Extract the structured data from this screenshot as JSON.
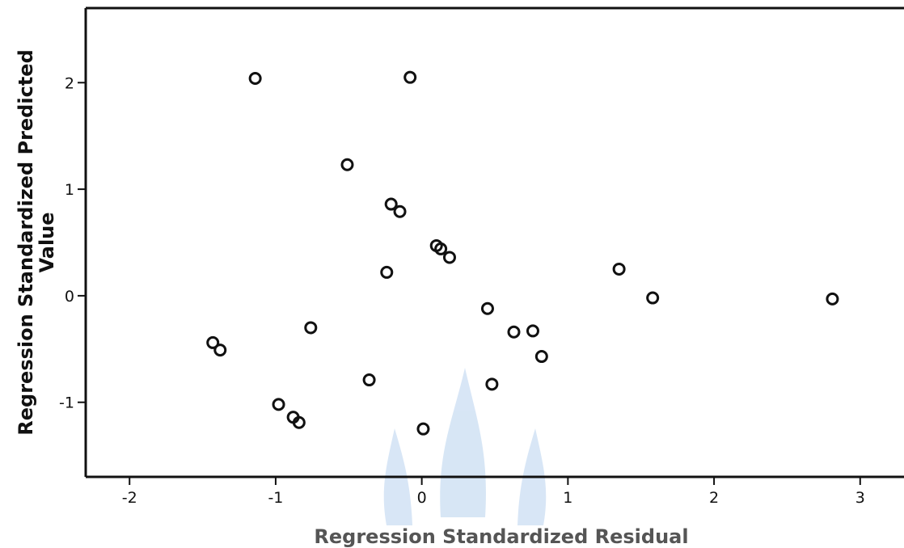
{
  "chart_data": {
    "type": "scatter",
    "title": "",
    "xlabel": "Regression Standardized Residual",
    "ylabel_line1": "Regression Standardized Predicted",
    "ylabel_line2": "Value",
    "xlim": [
      -2.3,
      3.3
    ],
    "ylim": [
      -1.7,
      2.7
    ],
    "x_ticks": [
      -2,
      -1,
      0,
      1,
      2,
      3
    ],
    "x_tick_labels": [
      "-2",
      "-1",
      "0",
      "1",
      "2",
      "3"
    ],
    "y_ticks": [
      -1,
      0,
      1,
      2
    ],
    "y_tick_labels": [
      "-1",
      "0",
      "1",
      "2"
    ],
    "grid": false,
    "legend": "none",
    "series": [
      {
        "points": [
          {
            "x": -1.14,
            "y": 2.04
          },
          {
            "x": -0.08,
            "y": 2.05
          },
          {
            "x": -0.51,
            "y": 1.23
          },
          {
            "x": -0.21,
            "y": 0.86
          },
          {
            "x": -0.15,
            "y": 0.79
          },
          {
            "x": 0.1,
            "y": 0.47
          },
          {
            "x": 0.13,
            "y": 0.44
          },
          {
            "x": 0.19,
            "y": 0.36
          },
          {
            "x": -0.24,
            "y": 0.22
          },
          {
            "x": 1.35,
            "y": 0.25
          },
          {
            "x": 1.58,
            "y": -0.02
          },
          {
            "x": 2.81,
            "y": -0.03
          },
          {
            "x": 0.45,
            "y": -0.12
          },
          {
            "x": -0.76,
            "y": -0.3
          },
          {
            "x": 0.63,
            "y": -0.34
          },
          {
            "x": 0.76,
            "y": -0.33
          },
          {
            "x": 0.82,
            "y": -0.57
          },
          {
            "x": -1.43,
            "y": -0.44
          },
          {
            "x": -1.38,
            "y": -0.51
          },
          {
            "x": -0.36,
            "y": -0.79
          },
          {
            "x": 0.48,
            "y": -0.83
          },
          {
            "x": -0.98,
            "y": -1.02
          },
          {
            "x": -0.88,
            "y": -1.14
          },
          {
            "x": -0.84,
            "y": -1.19
          },
          {
            "x": 0.01,
            "y": -1.25
          }
        ]
      }
    ]
  },
  "colors": {
    "axis": "#111111",
    "marker": "#111111",
    "watermark": "#b8d2ee"
  }
}
